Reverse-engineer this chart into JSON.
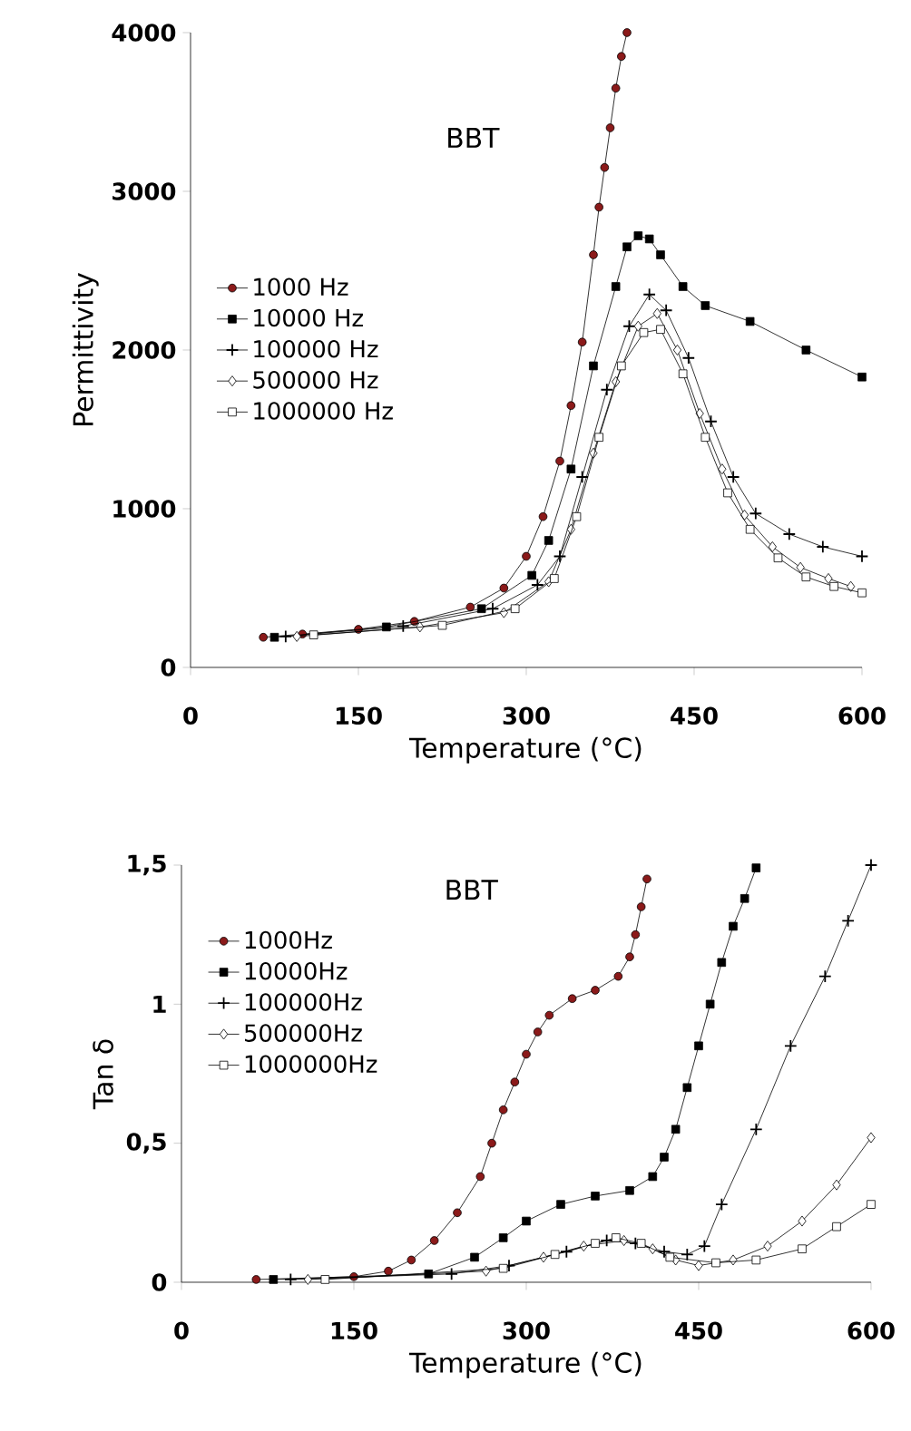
{
  "chart_data": [
    {
      "type": "line",
      "xlabel": "Temperature (°C)",
      "ylabel": "Permittivity",
      "annotations": [
        "BBT"
      ],
      "xlim": [
        0,
        600
      ],
      "ylim": [
        0,
        4000
      ],
      "xticks": [
        0,
        150,
        300,
        450,
        600
      ],
      "yticks": [
        0,
        1000,
        2000,
        3000,
        4000
      ],
      "legend": "left",
      "series": [
        {
          "name": "1000 Hz",
          "color": "#8b1a1a",
          "marker": "circle",
          "x": [
            65,
            100,
            150,
            200,
            250,
            280,
            300,
            315,
            330,
            340,
            350,
            360,
            365,
            370,
            375,
            380,
            385,
            390
          ],
          "values": [
            190,
            210,
            240,
            290,
            380,
            500,
            700,
            950,
            1300,
            1650,
            2050,
            2600,
            2900,
            3150,
            3400,
            3650,
            3850,
            4000
          ]
        },
        {
          "name": "10000 Hz",
          "color": "#000000",
          "marker": "square",
          "x": [
            75,
            175,
            260,
            305,
            320,
            340,
            360,
            380,
            390,
            400,
            410,
            420,
            440,
            460,
            500,
            550,
            600
          ],
          "values": [
            190,
            255,
            370,
            580,
            800,
            1250,
            1900,
            2400,
            2650,
            2720,
            2700,
            2600,
            2400,
            2280,
            2180,
            2000,
            1830
          ]
        },
        {
          "name": "100000 Hz",
          "color": "#000000",
          "marker": "cross",
          "x": [
            85,
            190,
            270,
            310,
            330,
            350,
            372,
            392,
            410,
            425,
            445,
            465,
            485,
            505,
            535,
            565,
            600
          ],
          "values": [
            195,
            260,
            370,
            520,
            700,
            1200,
            1750,
            2150,
            2350,
            2250,
            1950,
            1550,
            1200,
            970,
            840,
            760,
            700
          ]
        },
        {
          "name": "500000 Hz",
          "color": "#ffffff",
          "marker": "diamond",
          "x": [
            95,
            205,
            280,
            320,
            340,
            360,
            380,
            400,
            417,
            435,
            455,
            475,
            495,
            520,
            545,
            570,
            590
          ],
          "values": [
            195,
            255,
            345,
            540,
            870,
            1350,
            1800,
            2150,
            2230,
            2000,
            1600,
            1250,
            960,
            760,
            630,
            560,
            510
          ]
        },
        {
          "name": "1000000 Hz",
          "color": "#ffffff",
          "marker": "square",
          "x": [
            110,
            225,
            290,
            325,
            345,
            365,
            385,
            405,
            420,
            440,
            460,
            480,
            500,
            525,
            550,
            575,
            600
          ],
          "values": [
            205,
            265,
            370,
            560,
            950,
            1450,
            1900,
            2110,
            2130,
            1850,
            1450,
            1100,
            870,
            690,
            570,
            510,
            470
          ]
        }
      ]
    },
    {
      "type": "line",
      "xlabel": "Temperature (°C)",
      "ylabel": "Tan δ",
      "annotations": [
        "BBT"
      ],
      "xlim": [
        0,
        600
      ],
      "ylim": [
        0,
        1.5
      ],
      "xticks": [
        0,
        150,
        300,
        450,
        600
      ],
      "yticks": [
        0,
        {
          "value": 0.5,
          "label": "0,5"
        },
        1,
        {
          "value": 1.5,
          "label": "1,5"
        }
      ],
      "legend": "top left",
      "series": [
        {
          "name": "1000Hz",
          "color": "#8b1a1a",
          "marker": "circle",
          "x": [
            65,
            150,
            180,
            200,
            220,
            240,
            260,
            270,
            280,
            290,
            300,
            310,
            320,
            340,
            360,
            380,
            390,
            395,
            400,
            405
          ],
          "values": [
            0.01,
            0.02,
            0.04,
            0.08,
            0.15,
            0.25,
            0.38,
            0.5,
            0.62,
            0.72,
            0.82,
            0.9,
            0.96,
            1.02,
            1.05,
            1.1,
            1.17,
            1.25,
            1.35,
            1.45
          ]
        },
        {
          "name": "10000Hz",
          "color": "#000000",
          "marker": "square",
          "x": [
            80,
            215,
            255,
            280,
            300,
            330,
            360,
            390,
            410,
            420,
            430,
            440,
            450,
            460,
            470,
            480,
            490,
            500
          ],
          "values": [
            0.01,
            0.03,
            0.09,
            0.16,
            0.22,
            0.28,
            0.31,
            0.33,
            0.38,
            0.45,
            0.55,
            0.7,
            0.85,
            1.0,
            1.15,
            1.28,
            1.38,
            1.49
          ]
        },
        {
          "name": "100000Hz",
          "color": "#000000",
          "marker": "cross",
          "x": [
            95,
            235,
            285,
            335,
            370,
            395,
            420,
            440,
            455,
            470,
            500,
            530,
            560,
            580,
            600
          ],
          "values": [
            0.01,
            0.03,
            0.06,
            0.11,
            0.15,
            0.14,
            0.11,
            0.1,
            0.13,
            0.28,
            0.55,
            0.85,
            1.1,
            1.3,
            1.5
          ]
        },
        {
          "name": "500000Hz",
          "color": "#ffffff",
          "marker": "diamond",
          "x": [
            110,
            265,
            315,
            350,
            385,
            410,
            430,
            450,
            480,
            510,
            540,
            570,
            600
          ],
          "values": [
            0.01,
            0.04,
            0.09,
            0.13,
            0.15,
            0.12,
            0.08,
            0.06,
            0.08,
            0.13,
            0.22,
            0.35,
            0.52
          ]
        },
        {
          "name": "1000000Hz",
          "color": "#ffffff",
          "marker": "square",
          "x": [
            125,
            280,
            325,
            360,
            378,
            400,
            425,
            465,
            500,
            540,
            570,
            600
          ],
          "values": [
            0.01,
            0.05,
            0.1,
            0.14,
            0.16,
            0.14,
            0.09,
            0.07,
            0.08,
            0.12,
            0.2,
            0.28
          ]
        }
      ]
    }
  ]
}
